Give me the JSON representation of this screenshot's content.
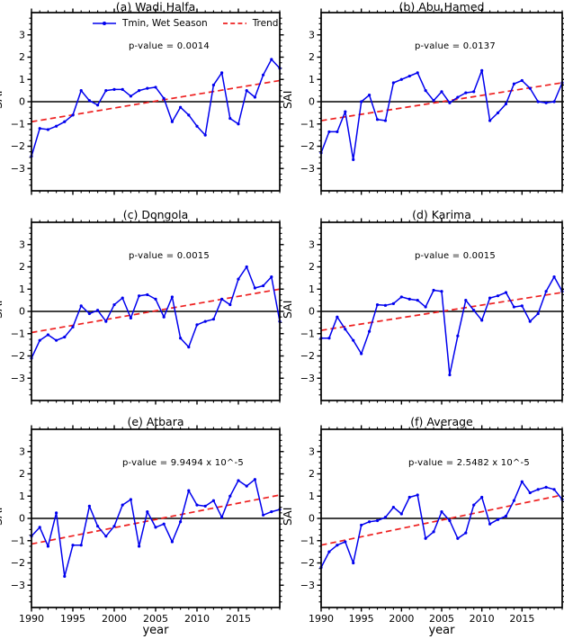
{
  "chart_data": {
    "type": "line",
    "x_label": "year",
    "y_label": "SAI",
    "x_min": 1990,
    "x_max": 2020,
    "x_step": 1,
    "ylim": [
      -4,
      4
    ],
    "x_ticks": [
      1990,
      1995,
      2000,
      2005,
      2010,
      2015
    ],
    "y_ticks": [
      -3,
      -2,
      -1,
      0,
      1,
      2,
      3
    ],
    "grid": false,
    "colors": {
      "series": "#0000ee",
      "trend": "#ee2020",
      "zero_line": "#000000",
      "spine": "#000000"
    },
    "legend": [
      {
        "label": "Tmin, Wet Season",
        "style": "solid-line-with-marker"
      },
      {
        "label": "Trend",
        "style": "dashed-line"
      }
    ],
    "panels": [
      {
        "id": "a",
        "title": "(a) Wadi Halfa",
        "p_label": "p-value = 0.0014",
        "trend": [
          -0.9,
          0.95
        ],
        "values": [
          -2.45,
          -1.2,
          -1.25,
          -1.1,
          -0.9,
          -0.6,
          0.5,
          0.05,
          -0.15,
          0.5,
          0.55,
          0.55,
          0.25,
          0.5,
          0.6,
          0.65,
          0.15,
          -0.9,
          -0.25,
          -0.6,
          -1.1,
          -1.5,
          0.75,
          1.3,
          -0.75,
          -1.0,
          0.5,
          0.2,
          1.2,
          1.9,
          1.5
        ]
      },
      {
        "id": "b",
        "title": "(b) Abu Hamed",
        "p_label": "p-value = 0.0137",
        "trend": [
          -0.85,
          0.85
        ],
        "values": [
          -2.3,
          -1.35,
          -1.35,
          -0.45,
          -2.6,
          0.0,
          0.3,
          -0.8,
          -0.85,
          0.85,
          1.0,
          1.15,
          1.3,
          0.5,
          0.05,
          0.45,
          -0.05,
          0.2,
          0.4,
          0.45,
          1.4,
          -0.85,
          -0.5,
          -0.1,
          0.8,
          0.95,
          0.6,
          0.0,
          -0.05,
          0.0,
          0.85
        ]
      },
      {
        "id": "c",
        "title": "(c) Dongola",
        "p_label": "p-value = 0.0015",
        "trend": [
          -0.95,
          1.0
        ],
        "values": [
          -2.1,
          -1.3,
          -1.05,
          -1.3,
          -1.15,
          -0.7,
          0.25,
          -0.1,
          0.05,
          -0.45,
          0.3,
          0.6,
          -0.3,
          0.7,
          0.75,
          0.55,
          -0.25,
          0.65,
          -1.2,
          -1.6,
          -0.6,
          -0.45,
          -0.35,
          0.55,
          0.3,
          1.45,
          2.0,
          1.05,
          1.15,
          1.55,
          -0.45
        ]
      },
      {
        "id": "d",
        "title": "(d) Karima",
        "p_label": "p-value = 0.0015",
        "trend": [
          -0.85,
          0.85
        ],
        "values": [
          -1.2,
          -1.2,
          -0.25,
          -0.8,
          -1.3,
          -1.9,
          -0.9,
          0.3,
          0.27,
          0.35,
          0.65,
          0.55,
          0.5,
          0.2,
          0.95,
          0.9,
          -2.85,
          -1.1,
          0.5,
          0.05,
          -0.4,
          0.6,
          0.7,
          0.85,
          0.2,
          0.25,
          -0.45,
          -0.1,
          0.9,
          1.55,
          0.9
        ]
      },
      {
        "id": "e",
        "title": "(e) Atbara",
        "p_label": "p-value = 9.9494 x 10^-5",
        "trend": [
          -1.15,
          1.05
        ],
        "values": [
          -0.8,
          -0.4,
          -1.25,
          0.25,
          -2.6,
          -1.2,
          -1.2,
          0.55,
          -0.35,
          -0.8,
          -0.35,
          0.6,
          0.85,
          -1.25,
          0.3,
          -0.4,
          -0.25,
          -1.05,
          -0.15,
          1.25,
          0.6,
          0.55,
          0.8,
          0.05,
          1.0,
          1.7,
          1.45,
          1.75,
          0.15,
          0.3,
          0.4
        ]
      },
      {
        "id": "f",
        "title": "(f) Average",
        "p_label": "p-value = 2.5482 x 10^-5",
        "trend": [
          -1.2,
          1.05
        ],
        "values": [
          -2.2,
          -1.5,
          -1.2,
          -1.05,
          -2.0,
          -0.3,
          -0.15,
          -0.1,
          0.05,
          0.5,
          0.2,
          0.95,
          1.05,
          -0.9,
          -0.6,
          0.3,
          -0.1,
          -0.9,
          -0.65,
          0.6,
          0.95,
          -0.25,
          -0.05,
          0.1,
          0.8,
          1.65,
          1.15,
          1.3,
          1.4,
          1.3,
          0.85
        ]
      }
    ]
  }
}
